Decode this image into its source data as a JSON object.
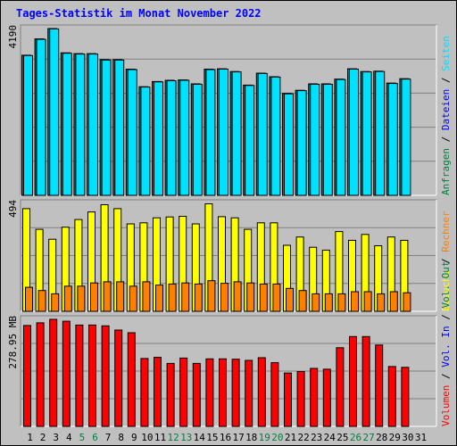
{
  "chart_data": {
    "type": "bar",
    "title": "Tages-Statistik im Monat November 2022",
    "categories": [
      "1",
      "2",
      "3",
      "4",
      "5",
      "6",
      "7",
      "8",
      "9",
      "10",
      "11",
      "12",
      "13",
      "14",
      "15",
      "16",
      "17",
      "18",
      "19",
      "20",
      "21",
      "22",
      "23",
      "24",
      "25",
      "26",
      "27",
      "28",
      "29",
      "30",
      "31"
    ],
    "weekend_days": [
      "5",
      "6",
      "12",
      "13",
      "19",
      "20",
      "26",
      "27"
    ],
    "panels": [
      {
        "id": "hits",
        "max_label": "4190",
        "ymax": 4190,
        "right_labels": [
          {
            "text": "Anfragen",
            "color": "#008040"
          },
          {
            "text": " / ",
            "color": "#000000"
          },
          {
            "text": "Dateien",
            "color": "#0000ff"
          },
          {
            "text": " / ",
            "color": "#000000"
          },
          {
            "text": "Seiten",
            "color": "#00e0ff"
          }
        ],
        "series": [
          {
            "name": "Anfragen",
            "color": "#008080",
            "values": [
              3520,
              3930,
              4190,
              3580,
              3560,
              3560,
              3410,
              3410,
              3170,
              2730,
              2860,
              2890,
              2900,
              2800,
              3170,
              3180,
              3110,
              2770,
              3070,
              2980,
              2560,
              2640,
              2800,
              2800,
              2920,
              3180,
              3110,
              3120,
              2820,
              2930,
              0
            ]
          },
          {
            "name": "Dateien",
            "color": "#00e0ff",
            "values": [
              3510,
              3920,
              4180,
              3570,
              3550,
              3550,
              3400,
              3400,
              3160,
              2720,
              2850,
              2880,
              2890,
              2790,
              3160,
              3170,
              3100,
              2760,
              3060,
              2970,
              2550,
              2630,
              2790,
              2790,
              2910,
              3170,
              3100,
              3110,
              2810,
              2920,
              0
            ]
          }
        ]
      },
      {
        "id": "visits",
        "max_label": "494",
        "ymax": 494,
        "right_labels": [
          {
            "text": "Besuche",
            "color": "#ffff00"
          },
          {
            "text": " / ",
            "color": "#000000"
          },
          {
            "text": "Rechner",
            "color": "#ff8000"
          }
        ],
        "series": [
          {
            "name": "Besuche",
            "color": "#ffff00",
            "values": [
              470,
              375,
              330,
              385,
              420,
              455,
              488,
              470,
              400,
              405,
              428,
              432,
              435,
              400,
              492,
              433,
              428,
              375,
              405,
              405,
              302,
              340,
              293,
              280,
              365,
              325,
              352,
              300,
              340,
              325,
              0
            ]
          },
          {
            "name": "Rechner",
            "color": "#ff8000",
            "values": [
              110,
              95,
              80,
              115,
              115,
              130,
              135,
              135,
              115,
              135,
              120,
              125,
              130,
              125,
              140,
              128,
              135,
              130,
              125,
              125,
              105,
              95,
              80,
              80,
              80,
              90,
              90,
              80,
              90,
              85,
              0
            ]
          }
        ]
      },
      {
        "id": "volume",
        "max_label": "278.95 MB",
        "ymax": 278.95,
        "right_labels": [
          {
            "text": "Volumen",
            "color": "#ff0000"
          },
          {
            "text": " / ",
            "color": "#000000"
          },
          {
            "text": "Vol. In",
            "color": "#0000ff"
          },
          {
            "text": " / ",
            "color": "#000000"
          },
          {
            "text": "Vol. Out",
            "color": "#008040"
          }
        ],
        "series": [
          {
            "name": "Volumen",
            "color": "#ff0000",
            "values": [
              263,
              270,
              279,
              274,
              264,
              264,
              262,
              251,
              244,
              177,
              180,
              164,
              178,
              164,
              176,
              176,
              175,
              172,
              179,
              166,
              139,
              143,
              151,
              149,
              205,
              234,
              234,
              212,
              156,
              154,
              0
            ]
          }
        ]
      }
    ]
  }
}
